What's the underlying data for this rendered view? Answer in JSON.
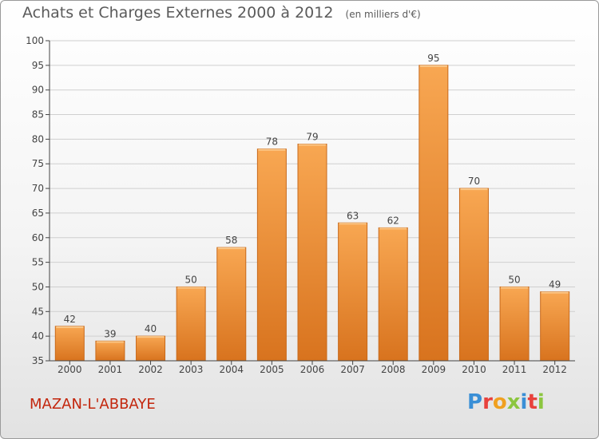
{
  "header": {
    "title": "Achats et Charges Externes 2000 à 2012",
    "subtitle": "(en milliers d'€)"
  },
  "footer": {
    "location": "MAZAN-L'ABBAYE",
    "brand": "Proxiti"
  },
  "colors": {
    "bar_top": "#f8a752",
    "bar_bottom": "#d8731e",
    "bar_edge": "#c86a1c",
    "title": "#5a5a5a",
    "location": "#c3260d",
    "brand_letters": [
      "#3a8fd6",
      "#e8413c",
      "#f0a020",
      "#8cc63f",
      "#3a8fd6",
      "#e8413c",
      "#8cc63f"
    ]
  },
  "chart_data": {
    "type": "bar",
    "categories": [
      "2000",
      "2001",
      "2002",
      "2003",
      "2004",
      "2005",
      "2006",
      "2007",
      "2008",
      "2009",
      "2010",
      "2011",
      "2012"
    ],
    "values": [
      42,
      39,
      40,
      50,
      58,
      78,
      79,
      63,
      62,
      95,
      70,
      50,
      49
    ],
    "ylim": [
      35,
      100
    ],
    "yticks": [
      35,
      40,
      45,
      50,
      55,
      60,
      65,
      70,
      75,
      80,
      85,
      90,
      95,
      100
    ],
    "grid": true,
    "data_labels": true
  }
}
